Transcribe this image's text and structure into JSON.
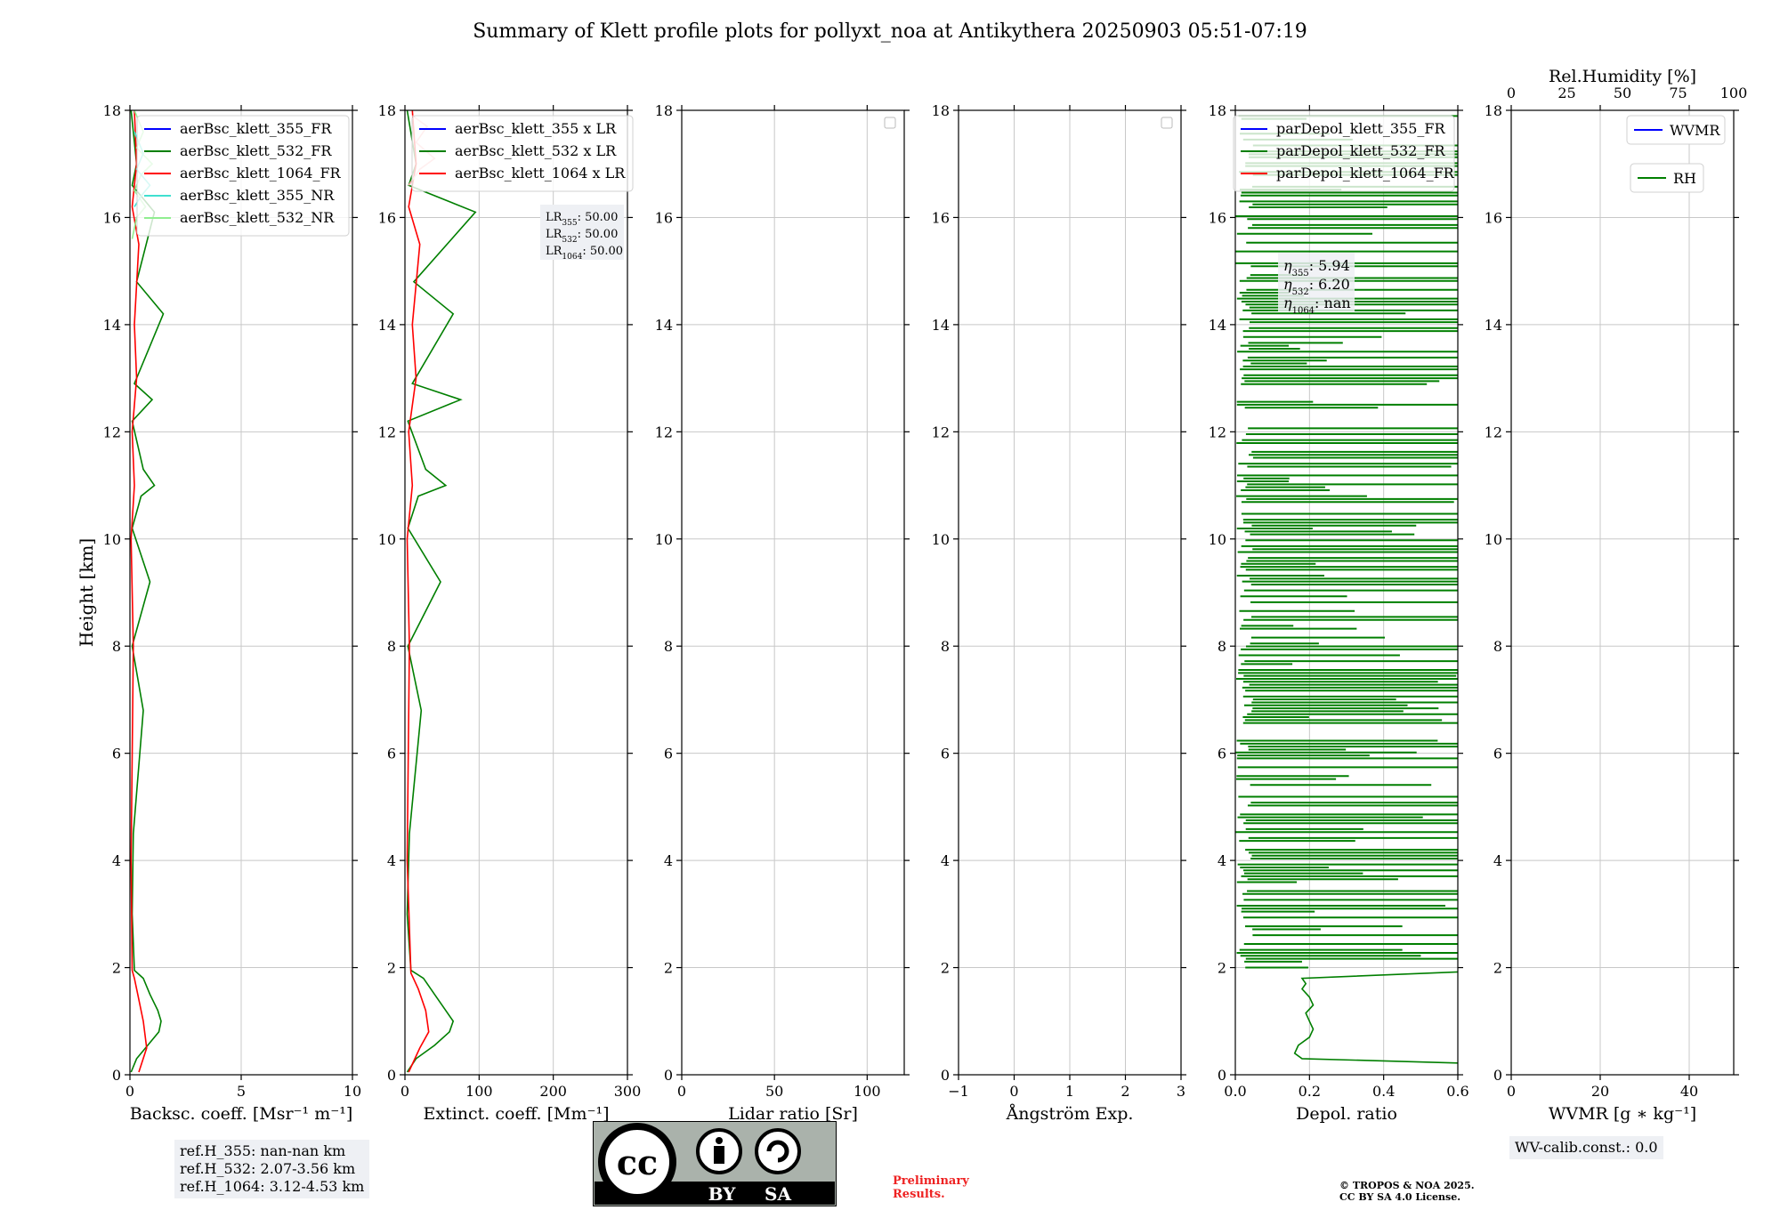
{
  "title": "Summary of Klett profile plots for pollyxt_noa at Antikythera 20250903 05:51-07:19",
  "colors": {
    "c355": "#0000ff",
    "c532": "#007f00",
    "c1064": "#ff0000",
    "c355nr": "#40e0d0",
    "c532nr": "#90ee90",
    "grid": "#c8c8c8"
  },
  "chart_data": [
    {
      "type": "line",
      "xlabel": "Backsc. coeff. [Msr⁻¹ m⁻¹]",
      "ylabel": "Height [km]",
      "xlim": [
        0,
        10
      ],
      "xticks": [
        "0",
        "5",
        "10"
      ],
      "xtick_values": [
        0,
        5,
        10
      ],
      "ylim": [
        0,
        18
      ],
      "yticks": [
        "0",
        "2",
        "4",
        "6",
        "8",
        "10",
        "12",
        "14",
        "16",
        "18"
      ],
      "legend": [
        "aerBsc_klett_355_FR",
        "aerBsc_klett_532_FR",
        "aerBsc_klett_1064_FR",
        "aerBsc_klett_355_NR",
        "aerBsc_klett_532_NR"
      ],
      "series": [
        {
          "name": "aerBsc_klett_532_FR",
          "color": "#007f00",
          "x": [
            0.05,
            0.3,
            0.8,
            1.3,
            1.4,
            1.25,
            0.9,
            0.6,
            0.2,
            0.1,
            0.15,
            0.6,
            0.1,
            0.9,
            0.1,
            0.5,
            1.1,
            0.6,
            0.1,
            1.0,
            0.2,
            1.5,
            0.3,
            1.1,
            0.1,
            0.3,
            0.05
          ],
          "y": [
            0.05,
            0.3,
            0.55,
            0.8,
            1.0,
            1.2,
            1.5,
            1.8,
            1.95,
            3.0,
            4.5,
            6.8,
            8.0,
            9.2,
            10.2,
            10.8,
            11.0,
            11.3,
            12.2,
            12.6,
            12.9,
            14.2,
            14.8,
            16.1,
            16.6,
            17.0,
            18.0
          ]
        },
        {
          "name": "aerBsc_klett_1064_FR",
          "color": "#ff0000",
          "x": [
            0.4,
            0.75,
            0.6,
            0.35,
            0.2,
            0.1,
            0.05,
            0.15,
            0.05,
            0.2,
            0.1,
            0.3,
            0.2,
            0.4,
            0.1,
            0.3,
            0.2
          ],
          "y": [
            0.05,
            0.5,
            1.0,
            1.5,
            1.8,
            1.95,
            4.0,
            8.0,
            10.0,
            11.0,
            12.0,
            13.0,
            14.0,
            15.5,
            16.2,
            17.0,
            18.0
          ]
        },
        {
          "name": "aerBsc_klett_532_NR",
          "color": "#90ee90",
          "x": [
            0.1,
            0.3,
            0.7,
            0.2,
            0.5,
            1.0,
            0.3,
            0.6,
            0.2
          ],
          "y": [
            15.6,
            16.0,
            16.2,
            16.5,
            16.8,
            17.0,
            17.3,
            17.6,
            18.0
          ]
        },
        {
          "name": "aerBsc_klett_355_NR",
          "color": "#40e0d0",
          "x": [
            0.2,
            0.5,
            0.9,
            0.3,
            0.6,
            0.2
          ],
          "y": [
            16.2,
            16.4,
            16.6,
            16.9,
            17.2,
            17.6
          ]
        }
      ]
    },
    {
      "type": "line",
      "xlabel": "Extinct. coeff. [Mm⁻¹]",
      "xlim": [
        0,
        300
      ],
      "xticks": [
        "0",
        "100",
        "200",
        "300"
      ],
      "xtick_values": [
        0,
        100,
        200,
        300
      ],
      "ylim": [
        0,
        18
      ],
      "yticks": [
        "0",
        "2",
        "4",
        "6",
        "8",
        "10",
        "12",
        "14",
        "16",
        "18"
      ],
      "legend": [
        "aerBsc_klett_355 x LR",
        "aerBsc_klett_532 x LR",
        "aerBsc_klett_1064 x LR"
      ],
      "lidar_ratios": [
        "50.00",
        "50.00",
        "50.00"
      ],
      "series": [
        {
          "name": "aerBsc_klett_532 x LR",
          "color": "#007f00",
          "x": [
            3,
            15,
            40,
            60,
            65,
            55,
            40,
            25,
            8,
            3,
            6,
            22,
            4,
            48,
            4,
            18,
            55,
            28,
            4,
            75,
            10,
            65,
            12,
            95,
            5,
            15,
            3
          ],
          "y": [
            0.05,
            0.3,
            0.55,
            0.8,
            1.0,
            1.2,
            1.5,
            1.8,
            1.95,
            3.0,
            4.5,
            6.8,
            8.0,
            9.2,
            10.2,
            10.8,
            11.0,
            11.3,
            12.2,
            12.6,
            12.9,
            14.2,
            14.8,
            16.1,
            16.6,
            17.0,
            18.0
          ]
        },
        {
          "name": "aerBsc_klett_1064 x LR",
          "color": "#ff0000",
          "x": [
            5,
            20,
            32,
            28,
            18,
            8,
            3,
            6,
            3,
            10,
            5,
            15,
            10,
            20,
            5,
            15,
            10
          ],
          "y": [
            0.05,
            0.5,
            0.8,
            1.2,
            1.6,
            1.9,
            4.0,
            8.0,
            10.0,
            11.0,
            12.0,
            13.0,
            14.0,
            15.5,
            16.2,
            17.0,
            18.0
          ]
        },
        {
          "name": "aerBsc_klett_355 x LR",
          "color": "#ffb0b0",
          "x": [
            5,
            20,
            40,
            15,
            30,
            10
          ],
          "y": [
            16.6,
            16.9,
            17.1,
            17.4,
            17.7,
            17.9
          ]
        }
      ]
    },
    {
      "type": "line",
      "xlabel": "Lidar ratio [Sr]",
      "xlim": [
        0,
        120
      ],
      "xticks": [
        "0",
        "50",
        "100"
      ],
      "xtick_values": [
        0,
        50,
        100
      ],
      "ylim": [
        0,
        18
      ],
      "yticks": [
        "0",
        "2",
        "4",
        "6",
        "8",
        "10",
        "12",
        "14",
        "16",
        "18"
      ],
      "series": []
    },
    {
      "type": "line",
      "xlabel": "Ångström Exp.",
      "xlim": [
        -1,
        3
      ],
      "xticks": [
        "−1",
        "0",
        "1",
        "2",
        "3"
      ],
      "xtick_values": [
        -1,
        0,
        1,
        2,
        3
      ],
      "ylim": [
        0,
        18
      ],
      "yticks": [
        "0",
        "2",
        "4",
        "6",
        "8",
        "10",
        "12",
        "14",
        "16",
        "18"
      ],
      "series": []
    },
    {
      "type": "line",
      "xlabel": "Depol. ratio",
      "xlim": [
        0,
        0.6
      ],
      "xticks": [
        "0.0",
        "0.2",
        "0.4",
        "0.6"
      ],
      "xtick_values": [
        0,
        0.2,
        0.4,
        0.6
      ],
      "ylim": [
        0,
        18
      ],
      "yticks": [
        "0",
        "2",
        "4",
        "6",
        "8",
        "10",
        "12",
        "14",
        "16",
        "18"
      ],
      "legend": [
        "parDepol_klett_355_FR",
        "parDepol_klett_532_FR",
        "parDepol_klett_1064_FR"
      ],
      "eta": [
        "5.94",
        "6.20",
        "nan"
      ],
      "series": [
        {
          "name": "parDepol_klett_532_FR",
          "color": "#007f00",
          "x": [
            0.6,
            0.18,
            0.16,
            0.17,
            0.2,
            0.21,
            0.2,
            0.19,
            0.21,
            0.2,
            0.18,
            0.19,
            0.18,
            0.6
          ],
          "y": [
            0.22,
            0.3,
            0.4,
            0.55,
            0.7,
            0.85,
            1.0,
            1.15,
            1.3,
            1.45,
            1.6,
            1.7,
            1.8,
            1.92
          ]
        }
      ],
      "hlines_start_km": 2.0,
      "hlines_end_km": 18.0
    },
    {
      "type": "line",
      "xlabel": "WVMR [g ∗ kg⁻¹]",
      "top_xlabel": "Rel.Humidity [%]",
      "xlim": [
        0,
        50
      ],
      "xticks": [
        "0",
        "20",
        "40"
      ],
      "xtick_values": [
        0,
        20,
        40
      ],
      "top_xlim": [
        0,
        100
      ],
      "top_xticks": [
        "0",
        "25",
        "50",
        "75",
        "100"
      ],
      "top_xtick_values": [
        0,
        25,
        50,
        75,
        100
      ],
      "ylim": [
        0,
        18
      ],
      "yticks": [
        "0",
        "2",
        "4",
        "6",
        "8",
        "10",
        "12",
        "14",
        "16",
        "18"
      ],
      "legend": [
        "WVMR",
        "RH"
      ],
      "series": []
    }
  ],
  "notes": {
    "refh": [
      "ref.H_355: nan-nan km",
      "ref.H_532: 2.07-3.56 km",
      "ref.H_1064: 3.12-4.53 km"
    ],
    "wv_calib": "WV-calib.const.: 0.0",
    "preliminary": [
      "Preliminary",
      "Results."
    ],
    "copyright": [
      "© TROPOS & NOA 2025.",
      "CC BY SA 4.0 License."
    ]
  },
  "cc_logo": {
    "cc": "cc",
    "by": "BY",
    "sa": "SA"
  }
}
